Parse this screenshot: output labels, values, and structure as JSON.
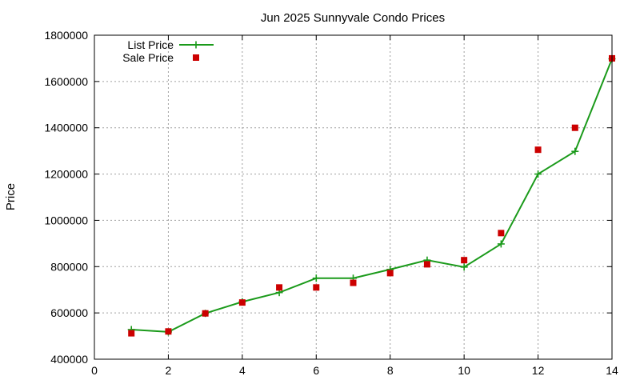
{
  "chart_data": {
    "type": "line",
    "title": "Jun 2025 Sunnyvale Condo Prices",
    "xlabel": "",
    "ylabel": "Price",
    "xlim": [
      0,
      14
    ],
    "ylim": [
      400000,
      1800000
    ],
    "x_ticks": [
      0,
      2,
      4,
      6,
      8,
      10,
      12,
      14
    ],
    "y_ticks": [
      400000,
      600000,
      800000,
      1000000,
      1200000,
      1400000,
      1600000,
      1800000
    ],
    "grid": true,
    "legend_position": "top-left",
    "series": [
      {
        "name": "List Price",
        "style": "line-with-plus-markers",
        "color": "#1a9a1a",
        "x": [
          1,
          2,
          3,
          4,
          5,
          6,
          7,
          8,
          9,
          10,
          11,
          12,
          13,
          14
        ],
        "y": [
          528000,
          518000,
          598000,
          648000,
          688000,
          750000,
          750000,
          788000,
          828000,
          798000,
          898000,
          1200000,
          1298000,
          1698000
        ]
      },
      {
        "name": "Sale Price",
        "style": "square-markers",
        "color": "#cc0000",
        "x": [
          1,
          2,
          3,
          4,
          5,
          6,
          7,
          8,
          9,
          10,
          11,
          12,
          13,
          14
        ],
        "y": [
          512000,
          520000,
          598000,
          645000,
          710000,
          710000,
          730000,
          772000,
          810000,
          828000,
          945000,
          1305000,
          1400000,
          1700000
        ]
      }
    ]
  }
}
